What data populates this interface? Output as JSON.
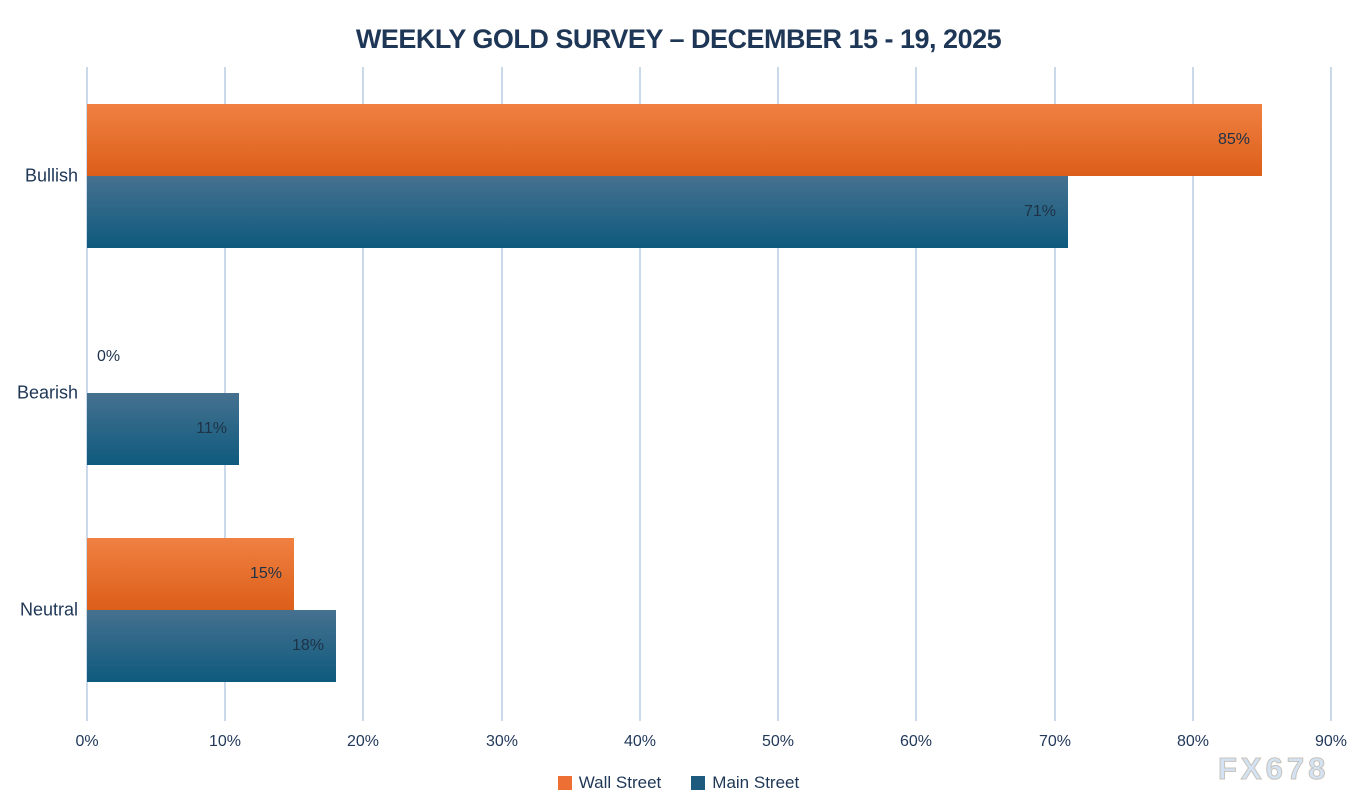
{
  "watermark": "FX678",
  "colors": {
    "background": "#FFFFFF",
    "grid": "#CBDAEB",
    "text": "#1F3756",
    "data_label": "#1E3247"
  },
  "chart_data": {
    "type": "bar",
    "orientation": "horizontal",
    "title": "WEEKLY GOLD SURVEY – DECEMBER 15 - 19, 2025",
    "categories": [
      "Bullish",
      "Bearish",
      "Neutral"
    ],
    "series": [
      {
        "name": "Wall Street",
        "values": [
          85,
          0,
          15
        ],
        "color_top": "#F08142",
        "color_bottom": "#DC5E19",
        "legend_color": "#ED6F34"
      },
      {
        "name": "Main Street",
        "values": [
          71,
          11,
          18
        ],
        "color_top": "#46718F",
        "color_bottom": "#0E5A7E",
        "legend_color": "#1E5A7D"
      }
    ],
    "value_suffix": "%",
    "xlim": [
      0,
      90
    ],
    "x_ticks": [
      "0%",
      "10%",
      "20%",
      "30%",
      "40%",
      "50%",
      "60%",
      "70%",
      "80%",
      "90%"
    ],
    "grid": true,
    "legend_position": "bottom",
    "data_labels_position": "inside-end"
  }
}
